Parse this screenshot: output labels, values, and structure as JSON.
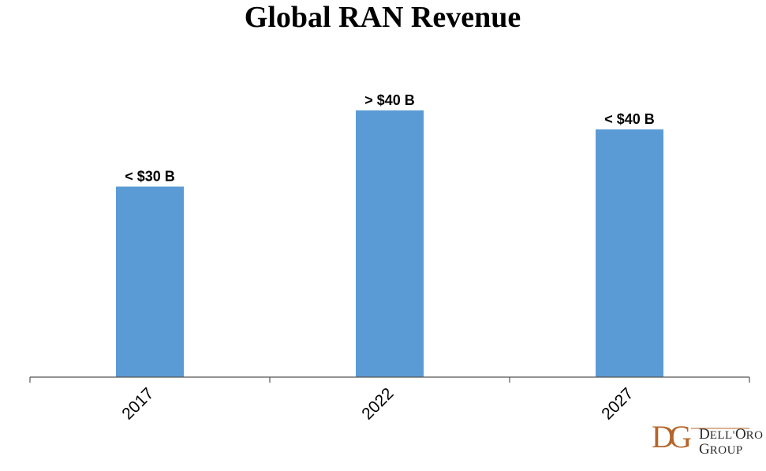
{
  "chart_data": {
    "type": "bar",
    "title": "Global RAN Revenue",
    "categories": [
      "2017",
      "2022",
      "2027"
    ],
    "values": [
      30,
      42,
      39
    ],
    "data_labels": [
      "< $30 B",
      "> $40 B",
      "< $40 B"
    ],
    "ylim": [
      0,
      50
    ],
    "grid": false,
    "legend": "none",
    "bar_color": "#5b9bd5"
  },
  "logo": {
    "name": "Dell'Oro Group",
    "monogram": "DG",
    "color": "#b5652a"
  }
}
